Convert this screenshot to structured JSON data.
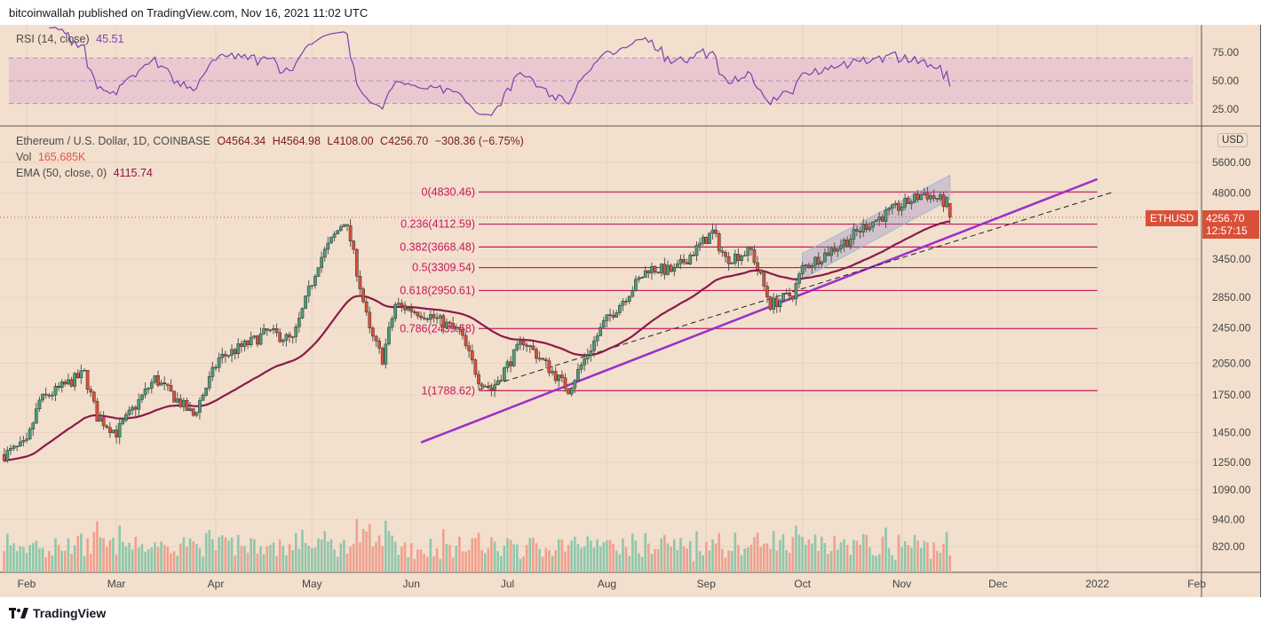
{
  "publisher": "bitcoinwallah published on TradingView.com, Nov 16, 2021 11:02 UTC",
  "rsi": {
    "label": "RSI (14, close)",
    "value": "45.51",
    "ticks": [
      "75.00",
      "50.00",
      "25.00"
    ]
  },
  "legend": {
    "symbol": "Ethereum / U.S. Dollar, 1D, COINBASE",
    "open": "O4564.34",
    "high": "H4564.98",
    "low": "L4108.00",
    "close": "C4256.70",
    "change": "−308.36 (−6.75%)",
    "vol_label": "Vol",
    "vol_value": "165.685K",
    "ema_label": "EMA (50, close, 0)",
    "ema_value": "4115.74"
  },
  "currency": "USD",
  "ticker": "ETHUSD",
  "last_price": "4256.70",
  "countdown": "12:57:15",
  "logo_text": "TradingView",
  "colors": {
    "up": "#4a9e76",
    "down": "#d9503a",
    "ema": "#8b1a4a",
    "fib": "#c8175a",
    "trend": "#9b30c8",
    "rsi": "#7e3fb0",
    "bg": "#f2dfcd"
  },
  "chart_data": {
    "type": "candlestick",
    "title": "Ethereum / U.S. Dollar, 1D, COINBASE",
    "yscale": "log",
    "ylim": [
      760,
      6500
    ],
    "y_ticks": [
      5600,
      4800,
      3450,
      2850,
      2450,
      2050,
      1750,
      1450,
      1250,
      1090,
      940,
      820
    ],
    "y_tick_labels": [
      "5600.00",
      "4800.00",
      "3450.00",
      "2850.00",
      "2450.00",
      "2050.00",
      "1750.00",
      "1450.00",
      "1250.00",
      "1090.00",
      "940.00",
      "820.00"
    ],
    "x_ticks": [
      {
        "date": "2021-02-01",
        "label": "Feb"
      },
      {
        "date": "2021-03-01",
        "label": "Mar"
      },
      {
        "date": "2021-04-01",
        "label": "Apr"
      },
      {
        "date": "2021-05-01",
        "label": "May"
      },
      {
        "date": "2021-06-01",
        "label": "Jun"
      },
      {
        "date": "2021-07-01",
        "label": "Jul"
      },
      {
        "date": "2021-08-01",
        "label": "Aug"
      },
      {
        "date": "2021-09-01",
        "label": "Sep"
      },
      {
        "date": "2021-10-01",
        "label": "Oct"
      },
      {
        "date": "2021-11-01",
        "label": "Nov"
      },
      {
        "date": "2021-12-01",
        "label": "Dec"
      },
      {
        "date": "2022-01-01",
        "label": "2022"
      },
      {
        "date": "2022-02-01",
        "label": "Feb"
      }
    ],
    "approx_closes": [
      [
        "2021-01-25",
        1300
      ],
      [
        "2021-02-01",
        1370
      ],
      [
        "2021-02-05",
        1700
      ],
      [
        "2021-02-19",
        1950
      ],
      [
        "2021-02-23",
        1570
      ],
      [
        "2021-03-01",
        1450
      ],
      [
        "2021-03-13",
        1900
      ],
      [
        "2021-03-25",
        1580
      ],
      [
        "2021-04-02",
        2100
      ],
      [
        "2021-04-13",
        2300
      ],
      [
        "2021-04-17",
        2400
      ],
      [
        "2021-04-25",
        2300
      ],
      [
        "2021-05-03",
        3400
      ],
      [
        "2021-05-11",
        4200
      ],
      [
        "2021-05-13",
        3800
      ],
      [
        "2021-05-19",
        2400
      ],
      [
        "2021-05-23",
        2100
      ],
      [
        "2021-05-27",
        2750
      ],
      [
        "2021-06-07",
        2600
      ],
      [
        "2021-06-16",
        2400
      ],
      [
        "2021-06-22",
        1900
      ],
      [
        "2021-06-26",
        1800
      ],
      [
        "2021-07-06",
        2300
      ],
      [
        "2021-07-20",
        1800
      ],
      [
        "2021-07-31",
        2500
      ],
      [
        "2021-08-14",
        3300
      ],
      [
        "2021-08-22",
        3250
      ],
      [
        "2021-09-03",
        3950
      ],
      [
        "2021-09-07",
        3450
      ],
      [
        "2021-09-15",
        3600
      ],
      [
        "2021-09-21",
        2750
      ],
      [
        "2021-09-28",
        2900
      ],
      [
        "2021-10-01",
        3300
      ],
      [
        "2021-10-15",
        3800
      ],
      [
        "2021-10-21",
        4100
      ],
      [
        "2021-11-08",
        4800
      ],
      [
        "2021-11-15",
        4564
      ]
    ],
    "last_candle": {
      "date": "2021-11-16",
      "open": 4564.34,
      "high": 4564.98,
      "low": 4108.0,
      "close": 4256.7
    },
    "ema_period": 50,
    "fib_levels": [
      {
        "label": "0(4830.46)",
        "value": 4830.46
      },
      {
        "label": "0.236(4112.59)",
        "value": 4112.59
      },
      {
        "label": "0.382(3668.48)",
        "value": 3668.48
      },
      {
        "label": "0.5(3309.54)",
        "value": 3309.54
      },
      {
        "label": "0.618(2950.61)",
        "value": 2950.61
      },
      {
        "label": "0.786(2439.58)",
        "value": 2439.58
      },
      {
        "label": "1(1788.62)",
        "value": 1788.62
      }
    ],
    "fib_range": {
      "start": "2021-06-22",
      "end": "2022-01-01"
    },
    "trendline": {
      "from": [
        "2021-06-04",
        1380
      ],
      "to": [
        "2022-01-01",
        5150
      ]
    },
    "dashed_line": {
      "from": [
        "2021-06-22",
        1800
      ],
      "to": [
        "2022-01-06",
        4830
      ]
    },
    "channel": {
      "from": "2021-10-01",
      "to": "2021-11-16",
      "upper": [
        3550,
        5250
      ],
      "lower": [
        3130,
        4650
      ]
    },
    "rsi_ylim": [
      0,
      100
    ],
    "rsi_bands": [
      70,
      30
    ]
  }
}
